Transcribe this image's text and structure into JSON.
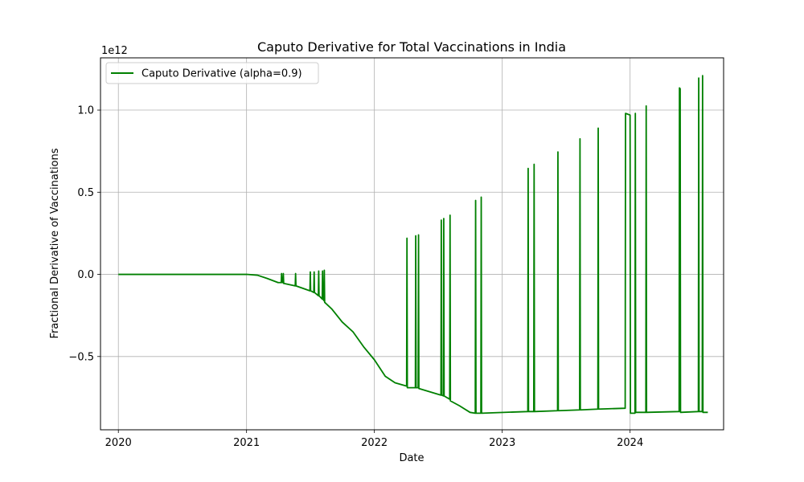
{
  "chart_data": {
    "type": "line",
    "title": "Caputo Derivative for Total Vaccinations in India",
    "xlabel": "Date",
    "ylabel": "Fractional Derivative of Vaccinations",
    "y_offset_label": "1e12",
    "xlim": [
      "2019-11-11",
      "2024-09-24"
    ],
    "ylim": [
      -0.946,
      1.318
    ],
    "x_ticks": [
      {
        "value": "2020-01-01",
        "label": "2020"
      },
      {
        "value": "2021-01-01",
        "label": "2021"
      },
      {
        "value": "2022-01-01",
        "label": "2022"
      },
      {
        "value": "2023-01-01",
        "label": "2023"
      },
      {
        "value": "2024-01-01",
        "label": "2024"
      }
    ],
    "y_ticks": [
      {
        "value": -0.5,
        "label": "−0.5"
      },
      {
        "value": 0.0,
        "label": "0.0"
      },
      {
        "value": 0.5,
        "label": "0.5"
      },
      {
        "value": 1.0,
        "label": "1.0"
      }
    ],
    "grid": true,
    "legend_position": "top-left",
    "series": [
      {
        "name": "Caputo Derivative (alpha=0.9)",
        "color": "#008000",
        "points": [
          [
            "2020-01-01",
            0.0
          ],
          [
            "2020-07-01",
            0.0
          ],
          [
            "2021-01-01",
            0.0
          ],
          [
            "2021-02-01",
            -0.005
          ],
          [
            "2021-03-01",
            -0.025
          ],
          [
            "2021-04-01",
            -0.05
          ],
          [
            "2021-04-10",
            -0.05
          ],
          [
            "2021-04-11",
            0.005
          ],
          [
            "2021-04-12",
            -0.05
          ],
          [
            "2021-04-15",
            -0.05
          ],
          [
            "2021-04-16",
            0.005
          ],
          [
            "2021-04-17",
            -0.055
          ],
          [
            "2021-05-20",
            -0.07
          ],
          [
            "2021-05-21",
            0.005
          ],
          [
            "2021-05-22",
            -0.07
          ],
          [
            "2021-07-01",
            -0.1
          ],
          [
            "2021-07-02",
            0.015
          ],
          [
            "2021-07-03",
            -0.1
          ],
          [
            "2021-07-12",
            -0.11
          ],
          [
            "2021-07-13",
            0.015
          ],
          [
            "2021-07-14",
            -0.11
          ],
          [
            "2021-07-25",
            -0.13
          ],
          [
            "2021-07-26",
            0.02
          ],
          [
            "2021-07-27",
            -0.13
          ],
          [
            "2021-08-05",
            -0.15
          ],
          [
            "2021-08-06",
            0.02
          ],
          [
            "2021-08-07",
            -0.15
          ],
          [
            "2021-08-10",
            -0.16
          ],
          [
            "2021-08-11",
            0.025
          ],
          [
            "2021-08-12",
            -0.17
          ],
          [
            "2021-09-01",
            -0.21
          ],
          [
            "2021-10-01",
            -0.29
          ],
          [
            "2021-11-01",
            -0.35
          ],
          [
            "2021-12-01",
            -0.44
          ],
          [
            "2022-01-01",
            -0.52
          ],
          [
            "2022-02-01",
            -0.62
          ],
          [
            "2022-03-01",
            -0.66
          ],
          [
            "2022-04-03",
            -0.68
          ],
          [
            "2022-04-04",
            0.22
          ],
          [
            "2022-04-05",
            -0.69
          ],
          [
            "2022-04-28",
            -0.69
          ],
          [
            "2022-04-29",
            0.235
          ],
          [
            "2022-04-30",
            -0.69
          ],
          [
            "2022-05-06",
            -0.69
          ],
          [
            "2022-05-07",
            0.24
          ],
          [
            "2022-05-08",
            -0.695
          ],
          [
            "2022-07-10",
            -0.735
          ],
          [
            "2022-07-11",
            0.33
          ],
          [
            "2022-07-12",
            -0.735
          ],
          [
            "2022-07-17",
            -0.74
          ],
          [
            "2022-07-18",
            0.34
          ],
          [
            "2022-07-19",
            -0.74
          ],
          [
            "2022-08-04",
            -0.76
          ],
          [
            "2022-08-05",
            0.36
          ],
          [
            "2022-08-06",
            -0.77
          ],
          [
            "2022-09-01",
            -0.8
          ],
          [
            "2022-10-01",
            -0.84
          ],
          [
            "2022-10-16",
            -0.845
          ],
          [
            "2022-10-17",
            0.45
          ],
          [
            "2022-10-18",
            -0.845
          ],
          [
            "2022-11-01",
            -0.845
          ],
          [
            "2022-11-02",
            0.47
          ],
          [
            "2022-11-03",
            -0.845
          ],
          [
            "2023-03-15",
            -0.835
          ],
          [
            "2023-03-16",
            0.645
          ],
          [
            "2023-03-17",
            -0.835
          ],
          [
            "2023-04-01",
            -0.835
          ],
          [
            "2023-04-02",
            0.67
          ],
          [
            "2023-04-03",
            -0.835
          ],
          [
            "2023-06-08",
            -0.83
          ],
          [
            "2023-06-09",
            0.745
          ],
          [
            "2023-06-10",
            -0.83
          ],
          [
            "2023-08-10",
            -0.825
          ],
          [
            "2023-08-11",
            0.825
          ],
          [
            "2023-08-12",
            -0.825
          ],
          [
            "2023-10-01",
            -0.82
          ],
          [
            "2023-10-02",
            0.89
          ],
          [
            "2023-10-03",
            -0.82
          ],
          [
            "2023-12-18",
            -0.815
          ],
          [
            "2023-12-19",
            0.98
          ],
          [
            "2024-01-01",
            0.97
          ],
          [
            "2024-01-02",
            -0.845
          ],
          [
            "2024-01-15",
            -0.845
          ],
          [
            "2024-01-16",
            0.98
          ],
          [
            "2024-01-17",
            -0.84
          ],
          [
            "2024-02-15",
            -0.84
          ],
          [
            "2024-02-16",
            1.025
          ],
          [
            "2024-02-17",
            -0.84
          ],
          [
            "2024-05-20",
            -0.835
          ],
          [
            "2024-05-21",
            1.135
          ],
          [
            "2024-05-23",
            1.13
          ],
          [
            "2024-05-24",
            -0.84
          ],
          [
            "2024-07-14",
            -0.835
          ],
          [
            "2024-07-15",
            1.195
          ],
          [
            "2024-07-16",
            -0.835
          ],
          [
            "2024-07-25",
            -0.835
          ],
          [
            "2024-07-26",
            1.21
          ],
          [
            "2024-07-27",
            -0.84
          ],
          [
            "2024-08-10",
            -0.84
          ]
        ]
      }
    ]
  }
}
